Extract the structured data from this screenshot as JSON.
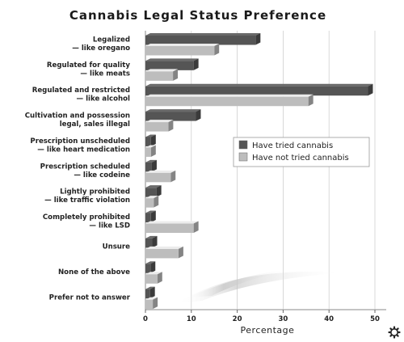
{
  "chart_data": {
    "type": "bar",
    "orientation": "horizontal",
    "title": "Cannabis Legal Status Preference",
    "xlabel": "Percentage",
    "ylabel": "",
    "xlim": [
      0,
      50
    ],
    "xticks": [
      "0",
      "10",
      "20",
      "30",
      "40",
      "50"
    ],
    "grid": true,
    "legend_position": "right-middle",
    "categories": [
      [
        "Legalized",
        "— like oregano"
      ],
      [
        "Regulated for quality",
        "— like meats"
      ],
      [
        "Regulated and restricted",
        "— like alcohol"
      ],
      [
        "Cultivation and possession",
        "legal, sales illegal"
      ],
      [
        "Prescription unscheduled",
        "— like heart medication"
      ],
      [
        "Prescription scheduled",
        "— like codeine"
      ],
      [
        "Lightly prohibited",
        "— like traffic violation"
      ],
      [
        "Completely prohibited",
        "— like LSD"
      ],
      [
        "Unsure"
      ],
      [
        "None of the above"
      ],
      [
        "Prefer not to answer"
      ]
    ],
    "series": [
      {
        "name": "Have tried cannabis",
        "color": "#555555",
        "values": [
          24,
          10.5,
          48.5,
          11,
          1.2,
          1.4,
          2.4,
          1.2,
          1.5,
          1.1,
          1.0
        ]
      },
      {
        "name": "Have not tried cannabis",
        "color": "#bdbdbd",
        "values": [
          15,
          6,
          35.5,
          5,
          1.2,
          5.5,
          1.8,
          10.5,
          7.2,
          2.6,
          1.6
        ]
      }
    ]
  },
  "footer": {
    "icon": "gear-icon"
  }
}
